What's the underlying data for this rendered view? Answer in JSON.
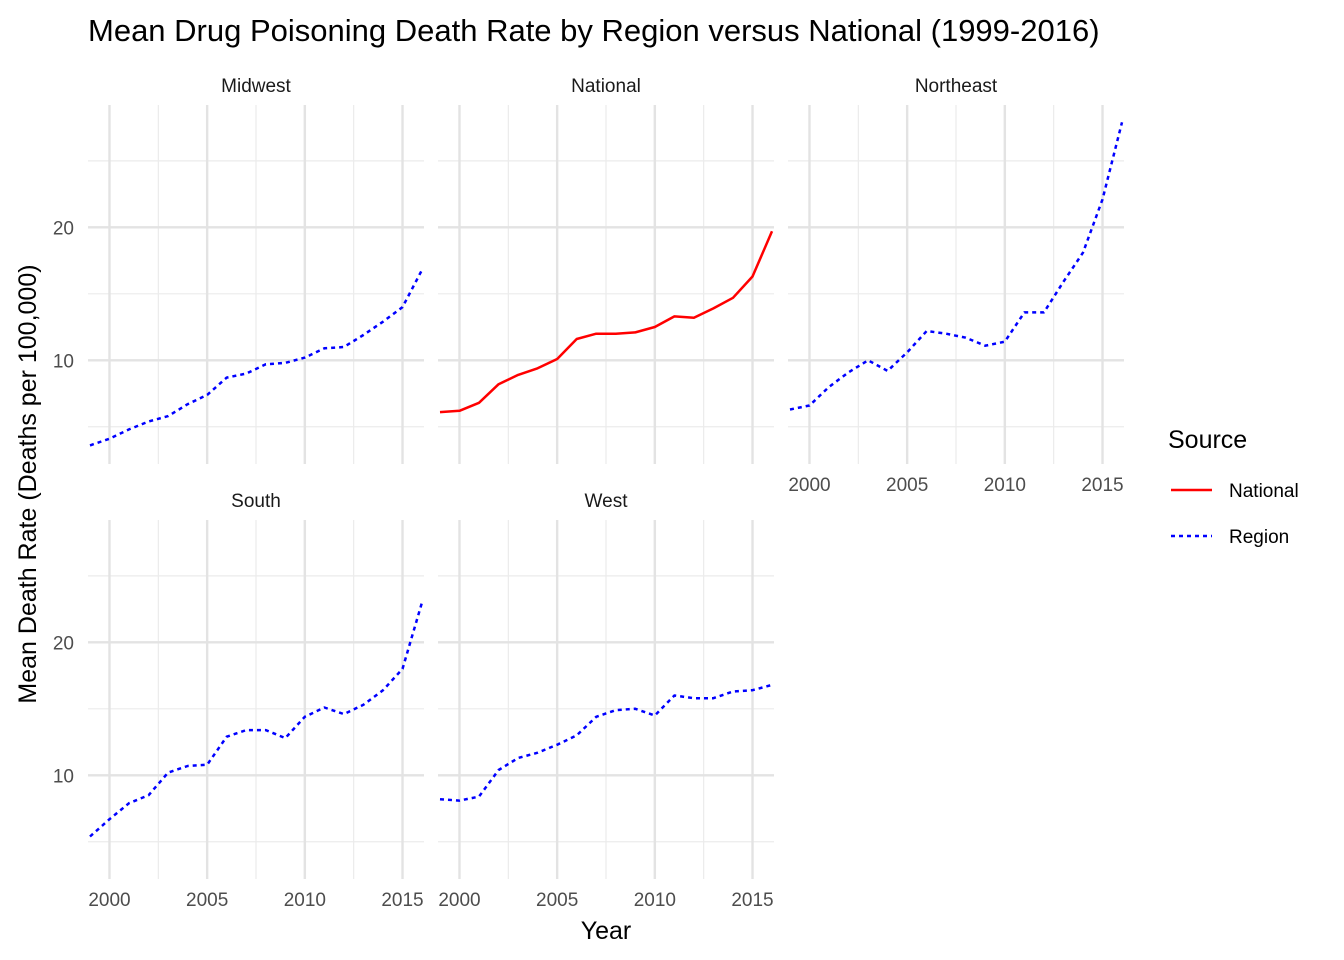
{
  "chart_data": {
    "type": "line",
    "title": "Mean Drug Poisoning Death Rate by Region versus National (1999-2016)",
    "xlabel": "Year",
    "ylabel": "Mean Death Rate (Deaths per 100,000)",
    "x": [
      1999,
      2000,
      2001,
      2002,
      2003,
      2004,
      2005,
      2006,
      2007,
      2008,
      2009,
      2010,
      2011,
      2012,
      2013,
      2014,
      2015,
      2016
    ],
    "xlim": [
      1998.9,
      2016.1
    ],
    "ylim": [
      2.2,
      29.2
    ],
    "x_ticks": [
      2000,
      2005,
      2010,
      2015
    ],
    "y_ticks": [
      10,
      20
    ],
    "x_tick_labels": [
      "2000",
      "2005",
      "2010",
      "2015"
    ],
    "y_tick_labels": [
      "10",
      "20"
    ],
    "grid": true,
    "legend": {
      "title": "Source",
      "position": "right",
      "entries": [
        {
          "label": "National",
          "color": "#ff0000",
          "dash": "solid"
        },
        {
          "label": "Region",
          "color": "#0000ff",
          "dash": "dotted"
        }
      ]
    },
    "panels": [
      {
        "name": "Midwest",
        "source": "Region",
        "values": [
          3.6,
          4.1,
          4.8,
          5.4,
          5.8,
          6.7,
          7.4,
          8.7,
          9.0,
          9.7,
          9.8,
          10.2,
          10.9,
          11.0,
          11.9,
          12.9,
          14.0,
          16.8
        ]
      },
      {
        "name": "National",
        "source": "National",
        "values": [
          6.1,
          6.2,
          6.8,
          8.2,
          8.9,
          9.4,
          10.1,
          11.6,
          12.0,
          12.0,
          12.1,
          12.5,
          13.3,
          13.2,
          13.9,
          14.7,
          16.3,
          19.7
        ]
      },
      {
        "name": "Northeast",
        "source": "Region",
        "values": [
          6.3,
          6.6,
          8.0,
          9.1,
          10.0,
          9.2,
          10.6,
          12.2,
          12.0,
          11.7,
          11.1,
          11.4,
          13.6,
          13.6,
          15.9,
          18.1,
          22.1,
          27.9
        ]
      },
      {
        "name": "South",
        "source": "Region",
        "values": [
          5.4,
          6.7,
          7.9,
          8.5,
          10.2,
          10.7,
          10.8,
          12.9,
          13.4,
          13.4,
          12.8,
          14.4,
          15.1,
          14.6,
          15.3,
          16.4,
          18.0,
          23.0
        ]
      },
      {
        "name": "West",
        "source": "Region",
        "values": [
          8.2,
          8.1,
          8.4,
          10.4,
          11.3,
          11.7,
          12.3,
          13.0,
          14.4,
          14.9,
          15.0,
          14.5,
          16.0,
          15.8,
          15.8,
          16.3,
          16.4,
          16.8
        ]
      }
    ]
  }
}
